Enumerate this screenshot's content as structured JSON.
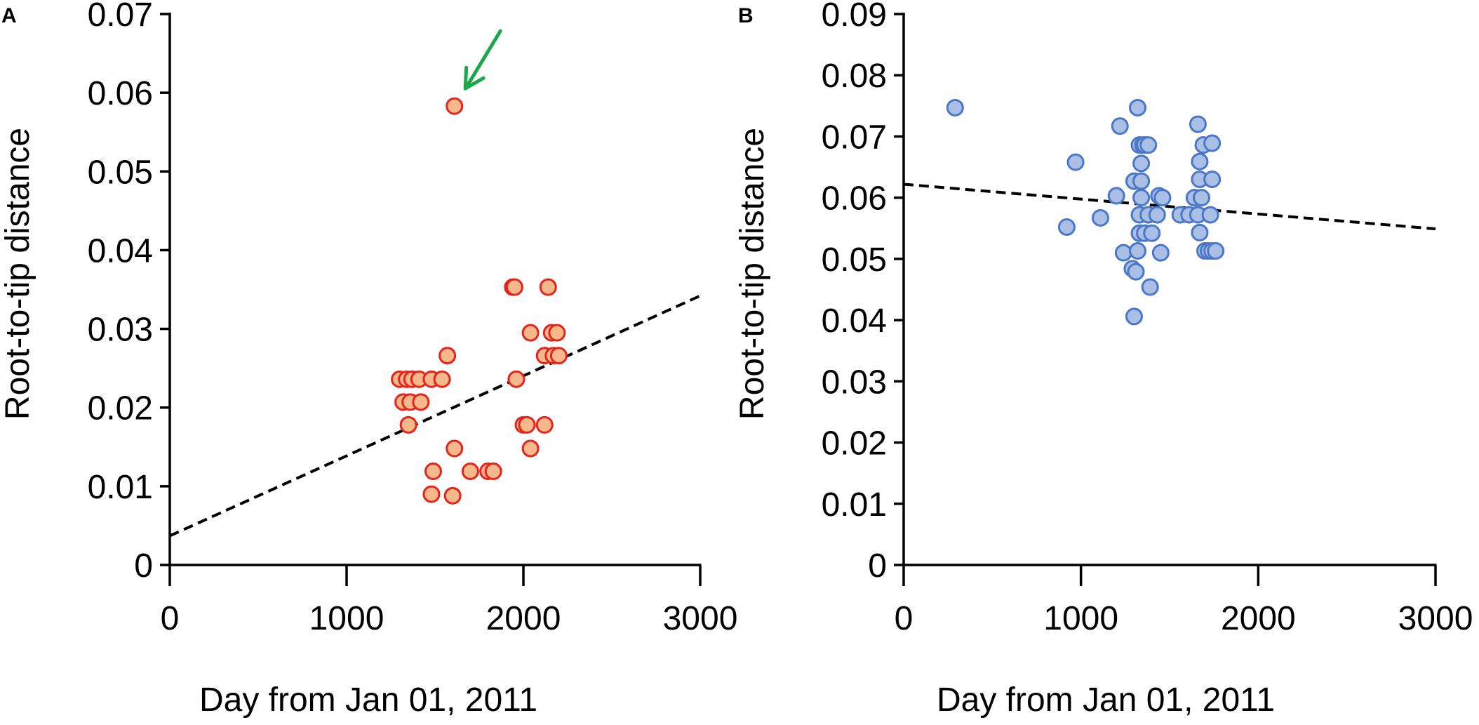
{
  "chart_data": [
    {
      "type": "scatter",
      "panel": "A",
      "xlabel": "Day from Jan 01, 2011",
      "ylabel": "Root-to-tip distance",
      "xlim": [
        0,
        3000
      ],
      "ylim": [
        0,
        0.07
      ],
      "xticks": [
        0,
        1000,
        2000,
        3000
      ],
      "xtick_labels": [
        "0",
        "1000",
        "2000",
        "3000"
      ],
      "yticks": [
        0,
        0.01,
        0.02,
        0.03,
        0.04,
        0.05,
        0.06,
        0.07
      ],
      "ytick_labels": [
        "0",
        "0.01",
        "0.02",
        "0.03",
        "0.04",
        "0.05",
        "0.06",
        "0.07"
      ],
      "grid": false,
      "marker_fill": "#f7b98b",
      "marker_edge": "#e8231c",
      "trend_line": {
        "from": [
          0,
          0.0037
        ],
        "to": [
          3000,
          0.0342
        ],
        "style": "dashed",
        "color": "#000000"
      },
      "annotation": {
        "type": "arrow",
        "color": "#1aa84a",
        "target": [
          1600,
          0.0583
        ],
        "description": "outlier"
      },
      "points": [
        [
          1610,
          0.0583
        ],
        [
          1300,
          0.0236
        ],
        [
          1340,
          0.0236
        ],
        [
          1370,
          0.0236
        ],
        [
          1410,
          0.0236
        ],
        [
          1480,
          0.0236
        ],
        [
          1540,
          0.0236
        ],
        [
          1320,
          0.0207
        ],
        [
          1360,
          0.0207
        ],
        [
          1420,
          0.0207
        ],
        [
          1350,
          0.0178
        ],
        [
          1570,
          0.0266
        ],
        [
          1940,
          0.0353
        ],
        [
          1950,
          0.0353
        ],
        [
          2140,
          0.0353
        ],
        [
          2040,
          0.0295
        ],
        [
          2160,
          0.0295
        ],
        [
          2190,
          0.0295
        ],
        [
          2120,
          0.0266
        ],
        [
          2170,
          0.0266
        ],
        [
          2200,
          0.0266
        ],
        [
          1960,
          0.0236
        ],
        [
          2000,
          0.0178
        ],
        [
          2020,
          0.0178
        ],
        [
          2120,
          0.0178
        ],
        [
          1610,
          0.0148
        ],
        [
          2040,
          0.0148
        ],
        [
          1490,
          0.0119
        ],
        [
          1700,
          0.0119
        ],
        [
          1800,
          0.0119
        ],
        [
          1830,
          0.0119
        ],
        [
          1480,
          0.009
        ],
        [
          1600,
          0.0088
        ]
      ]
    },
    {
      "type": "scatter",
      "panel": "B",
      "xlabel": "Day from Jan 01, 2011",
      "ylabel": "Root-to-tip distance",
      "xlim": [
        0,
        3000
      ],
      "ylim": [
        0,
        0.09
      ],
      "xticks": [
        0,
        1000,
        2000,
        3000
      ],
      "xtick_labels": [
        "0",
        "1000",
        "2000",
        "3000"
      ],
      "yticks": [
        0,
        0.01,
        0.02,
        0.03,
        0.04,
        0.05,
        0.06,
        0.07,
        0.08,
        0.09
      ],
      "ytick_labels": [
        "0",
        "0.01",
        "0.02",
        "0.03",
        "0.04",
        "0.05",
        "0.06",
        "0.07",
        "0.08",
        "0.09"
      ],
      "grid": false,
      "marker_fill": "#a9bfe6",
      "marker_edge": "#4a77c8",
      "trend_line": {
        "from": [
          0,
          0.0622
        ],
        "to": [
          3000,
          0.0549
        ],
        "style": "dashed",
        "color": "#000000"
      },
      "points": [
        [
          290,
          0.0747
        ],
        [
          970,
          0.0658
        ],
        [
          920,
          0.0552
        ],
        [
          1110,
          0.0567
        ],
        [
          1200,
          0.0603
        ],
        [
          1220,
          0.0717
        ],
        [
          1240,
          0.051
        ],
        [
          1320,
          0.0747
        ],
        [
          1330,
          0.0686
        ],
        [
          1350,
          0.0686
        ],
        [
          1360,
          0.0686
        ],
        [
          1380,
          0.0686
        ],
        [
          1340,
          0.0656
        ],
        [
          1300,
          0.0627
        ],
        [
          1340,
          0.0627
        ],
        [
          1340,
          0.06
        ],
        [
          1440,
          0.0603
        ],
        [
          1460,
          0.06
        ],
        [
          1330,
          0.0572
        ],
        [
          1380,
          0.0572
        ],
        [
          1430,
          0.0572
        ],
        [
          1330,
          0.0542
        ],
        [
          1360,
          0.0542
        ],
        [
          1400,
          0.0542
        ],
        [
          1320,
          0.0513
        ],
        [
          1450,
          0.051
        ],
        [
          1290,
          0.0484
        ],
        [
          1310,
          0.0479
        ],
        [
          1390,
          0.0454
        ],
        [
          1300,
          0.0406
        ],
        [
          1560,
          0.0572
        ],
        [
          1610,
          0.0572
        ],
        [
          1640,
          0.06
        ],
        [
          1680,
          0.06
        ],
        [
          1660,
          0.072
        ],
        [
          1690,
          0.0686
        ],
        [
          1740,
          0.0689
        ],
        [
          1670,
          0.0659
        ],
        [
          1670,
          0.063
        ],
        [
          1740,
          0.063
        ],
        [
          1660,
          0.0572
        ],
        [
          1730,
          0.0572
        ],
        [
          1670,
          0.0543
        ],
        [
          1700,
          0.0513
        ],
        [
          1720,
          0.0513
        ],
        [
          1740,
          0.0513
        ],
        [
          1760,
          0.0513
        ]
      ]
    }
  ]
}
